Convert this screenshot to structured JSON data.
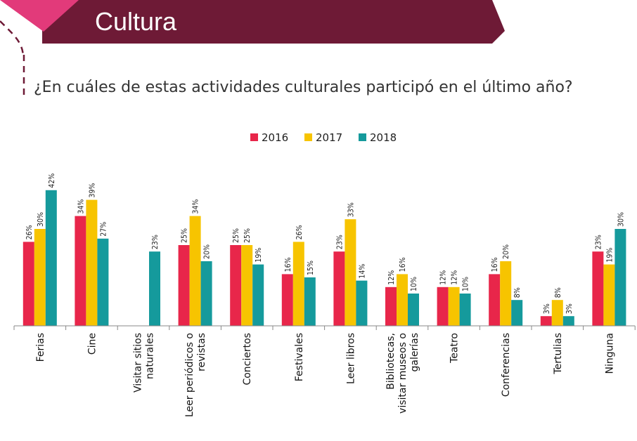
{
  "header": {
    "title": "Cultura",
    "banner_color": "#6e1a36",
    "accent_color": "#e23a7a"
  },
  "question": "¿En cuáles de estas actividades culturales participó en el último año?",
  "chart_data": {
    "type": "bar",
    "legend_position": "top-center",
    "grid": false,
    "ylim": [
      0,
      45
    ],
    "categories": [
      [
        "Ferias"
      ],
      [
        "Cine"
      ],
      [
        "Visitar sitios",
        "naturales"
      ],
      [
        "Leer periódicos o",
        "revistas"
      ],
      [
        "Conciertos"
      ],
      [
        "Festivales"
      ],
      [
        "Leer libros"
      ],
      [
        "Bibliotecas,",
        "visitar museos o",
        "galerías"
      ],
      [
        "Teatro"
      ],
      [
        "Conferencias"
      ],
      [
        "Tertulias"
      ],
      [
        "Ninguna"
      ]
    ],
    "series": [
      {
        "name": "2016",
        "color": "#e8264a",
        "values": [
          26,
          34,
          null,
          25,
          25,
          16,
          23,
          12,
          12,
          16,
          3,
          23
        ]
      },
      {
        "name": "2017",
        "color": "#f7c400",
        "values": [
          30,
          39,
          null,
          34,
          25,
          26,
          33,
          16,
          12,
          20,
          8,
          19
        ]
      },
      {
        "name": "2018",
        "color": "#159a9c",
        "values": [
          42,
          27,
          23,
          20,
          19,
          15,
          14,
          10,
          10,
          8,
          3,
          30
        ]
      }
    ],
    "value_suffix": "%"
  }
}
